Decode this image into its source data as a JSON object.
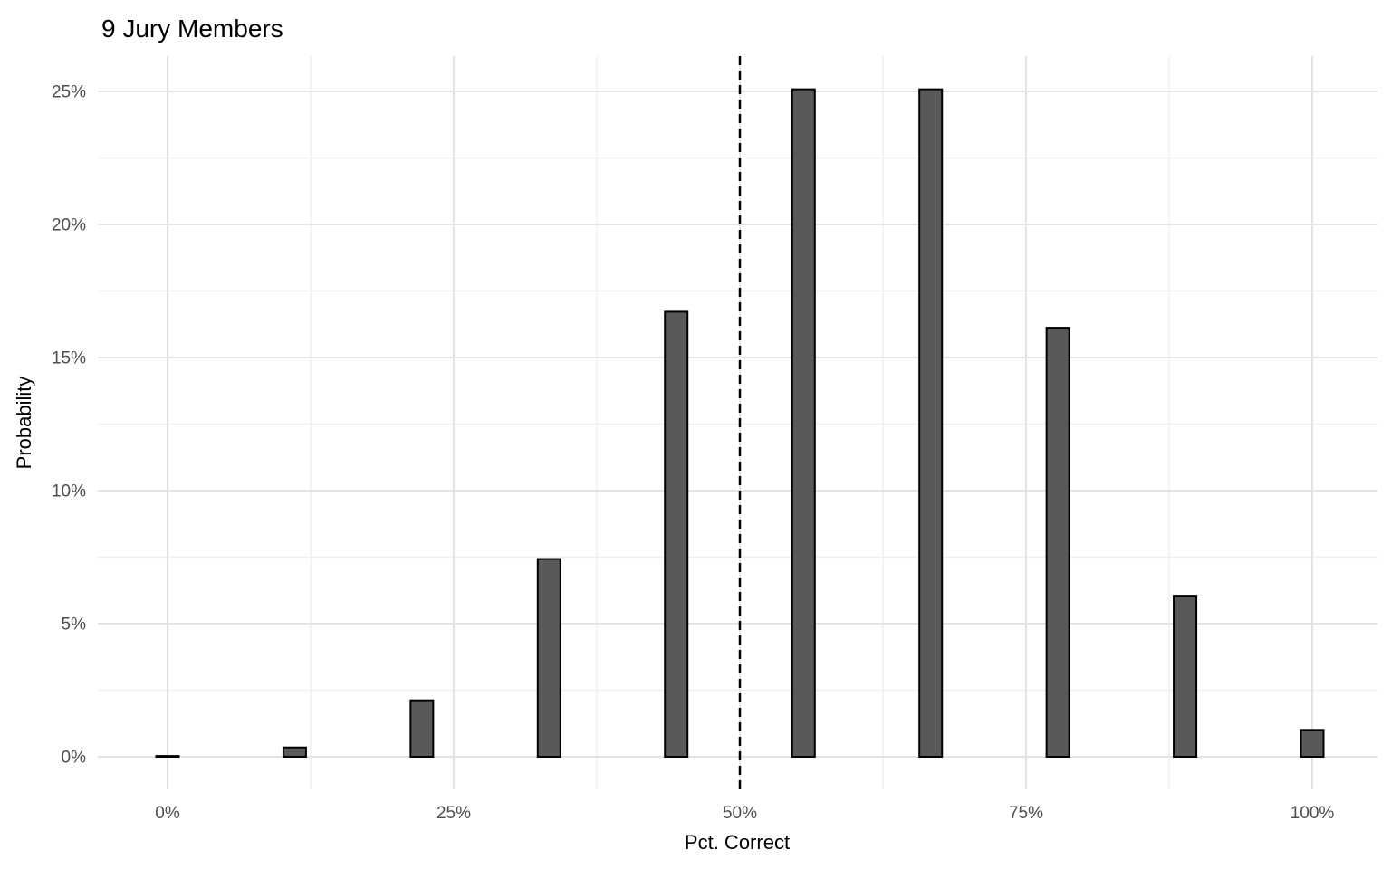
{
  "title": "9 Jury Members",
  "colors": {
    "background": "#ffffff",
    "bar_fill": "#595959",
    "bar_stroke": "#000000",
    "grid_major": "#e3e3e3",
    "grid_minor": "#f0f0f0",
    "reference_line": "#000000",
    "tick_text": "#4d4d4d",
    "title_text": "#000000"
  },
  "chart_data": {
    "type": "bar",
    "title": "9 Jury Members",
    "xlabel": "Pct. Correct",
    "ylabel": "Probability",
    "x": [
      0,
      11.11,
      22.22,
      33.33,
      44.44,
      55.56,
      66.67,
      77.78,
      88.89,
      100
    ],
    "values": [
      0.03,
      0.35,
      2.12,
      7.43,
      16.72,
      25.08,
      25.08,
      16.12,
      6.05,
      1.01
    ],
    "value_unit": "percent",
    "x_ticks": {
      "values": [
        0,
        25,
        50,
        75,
        100
      ],
      "labels": [
        "0%",
        "25%",
        "50%",
        "75%",
        "100%"
      ]
    },
    "y_ticks": {
      "values": [
        0,
        5,
        10,
        15,
        20,
        25
      ],
      "labels": [
        "0%",
        "5%",
        "10%",
        "15%",
        "20%",
        "25%"
      ]
    },
    "xlim": [
      -6.1,
      105.7
    ],
    "ylim": [
      -1.22,
      26.33
    ],
    "grid": "major+minor",
    "legend": "none",
    "reference_line": {
      "x": 50,
      "style": "dashed"
    }
  }
}
